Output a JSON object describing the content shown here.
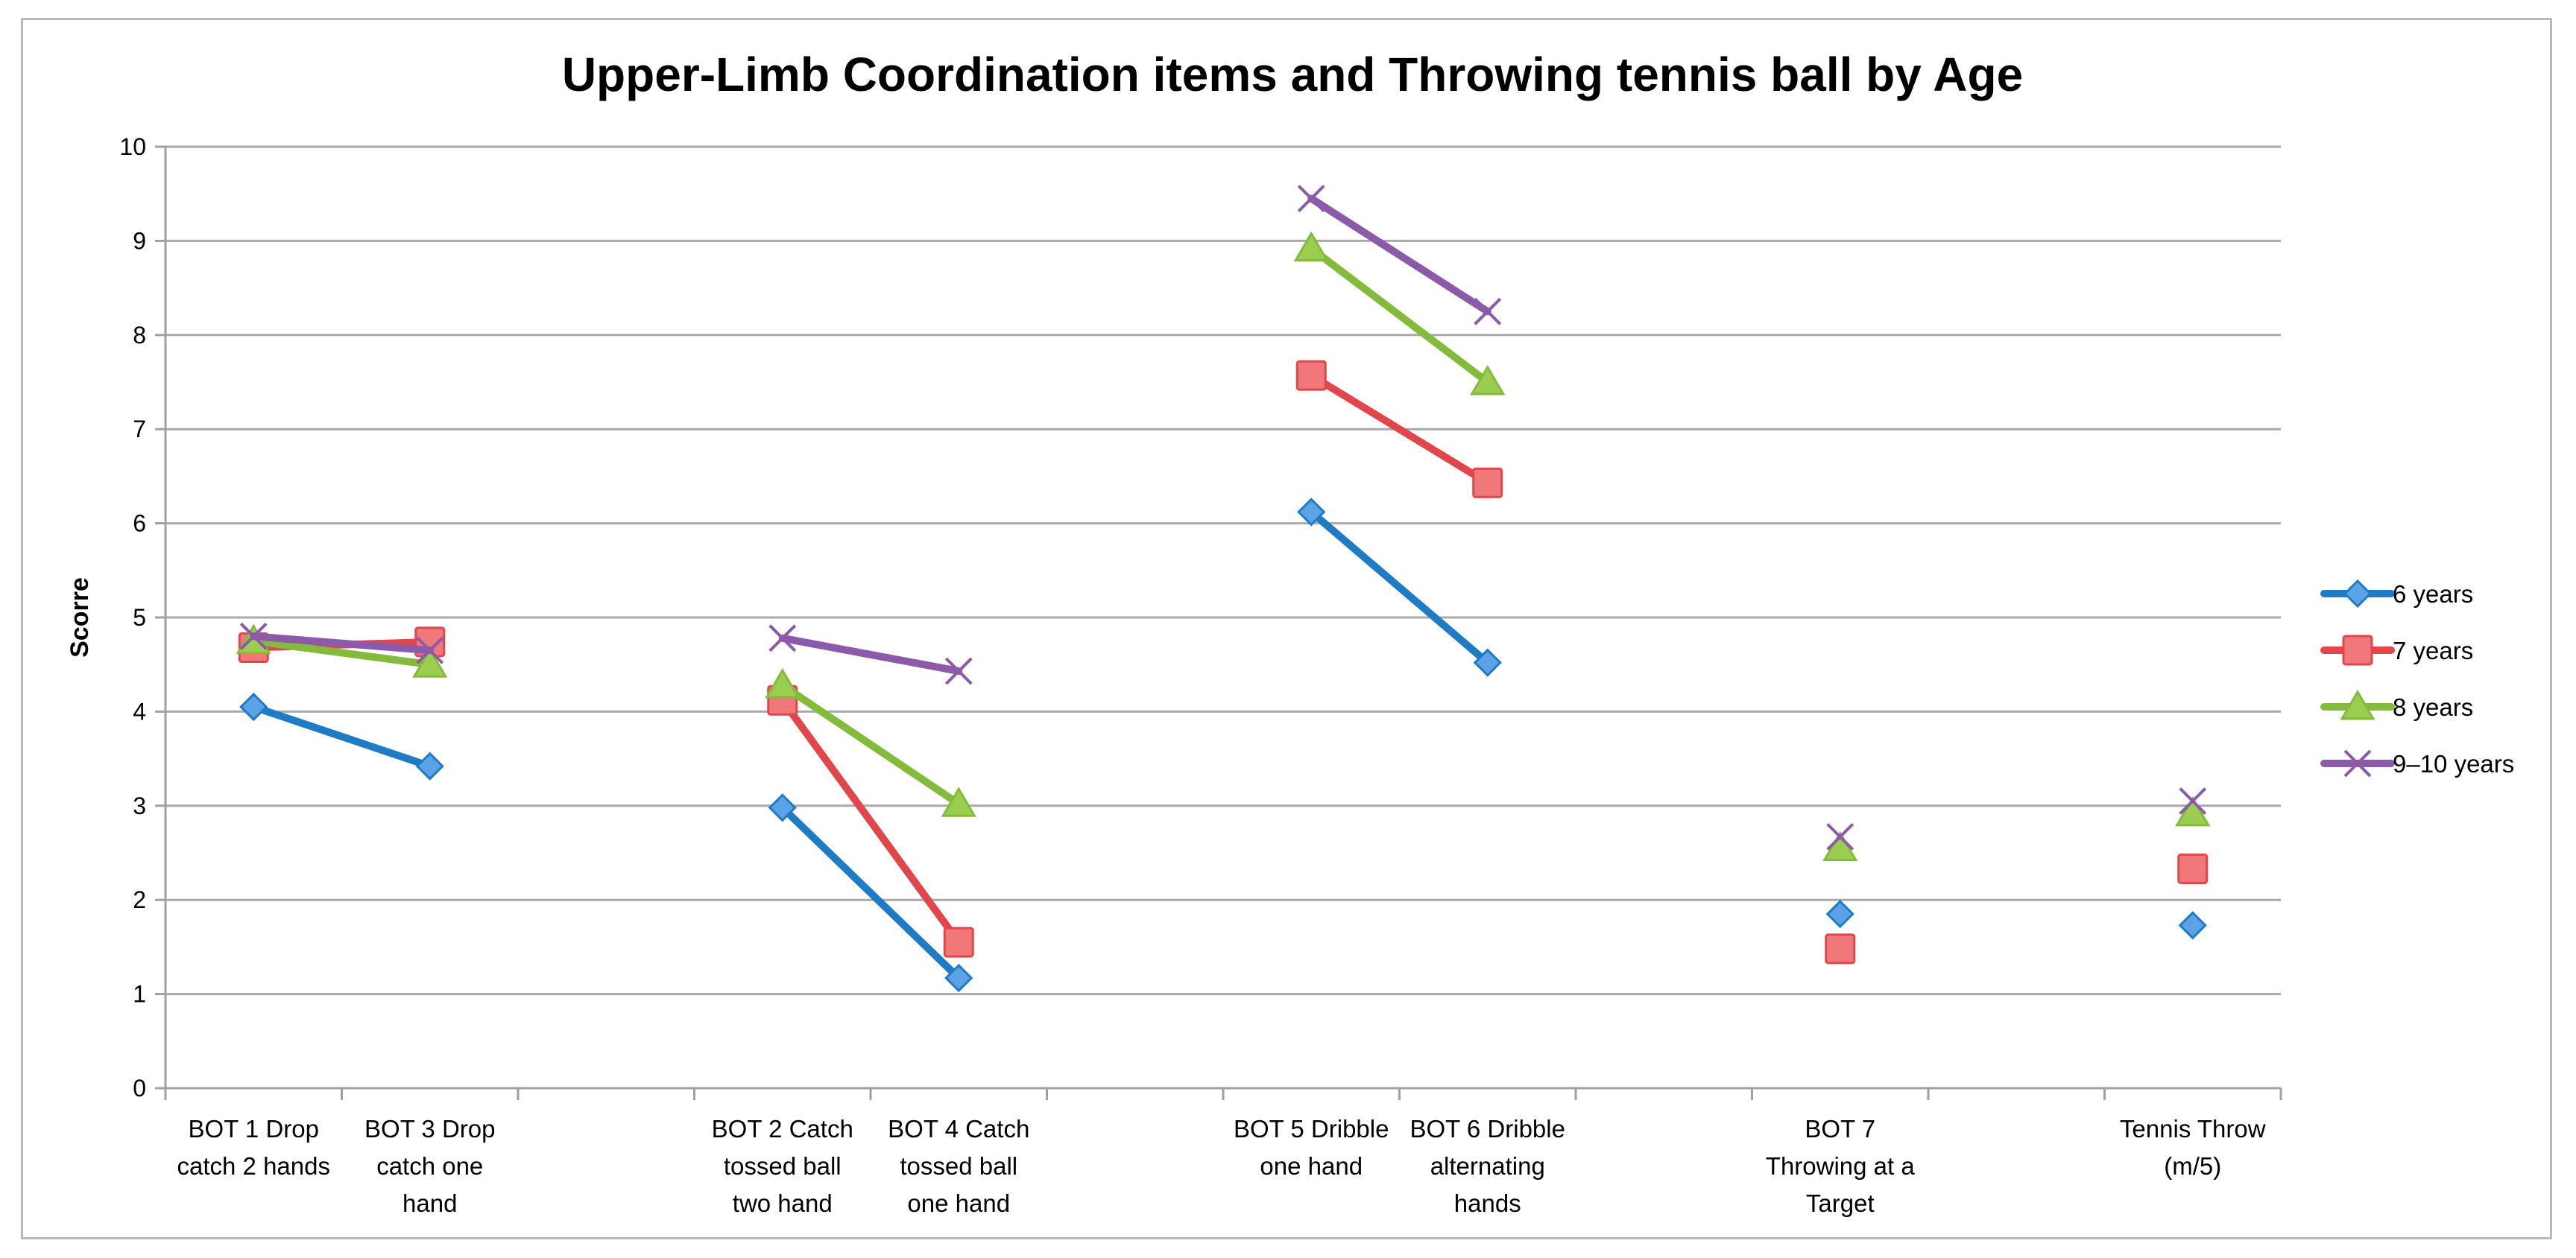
{
  "chart_data": {
    "type": "line",
    "title": "Upper-Limb Coordination items and Throwing tennis ball by Age",
    "xlabel": "",
    "ylabel": "Scorre",
    "ylim": [
      0,
      10
    ],
    "yticks": [
      "0",
      "1",
      "2",
      "3",
      "4",
      "5",
      "6",
      "7",
      "8",
      "9",
      "10"
    ],
    "grid": true,
    "legend_position": "right",
    "categories": [
      [
        "BOT 1 Drop",
        "catch 2 hands"
      ],
      [
        "BOT 3 Drop",
        "catch one",
        "hand"
      ],
      [],
      [
        "BOT 2 Catch",
        "tossed ball",
        "two hand"
      ],
      [
        "BOT 4 Catch",
        "tossed ball",
        "one hand"
      ],
      [],
      [
        "BOT 5 Dribble",
        "one hand"
      ],
      [
        "BOT 6 Dribble",
        "alternating",
        "hands"
      ],
      [],
      [
        "BOT 7",
        "Throwing at a",
        "Target"
      ],
      [],
      [
        "Tennis Throw",
        "(m/5)"
      ]
    ],
    "series": [
      {
        "name": "6 years",
        "color": "#1f7bc3",
        "fill": "#5ba3e6",
        "marker": "diamond",
        "values": [
          4.05,
          3.42,
          null,
          2.98,
          1.17,
          null,
          6.12,
          4.52,
          null,
          1.85,
          null,
          1.73
        ]
      },
      {
        "name": "7 years",
        "color": "#e0464a",
        "fill": "#f0787a",
        "marker": "square",
        "values": [
          4.68,
          4.74,
          null,
          4.12,
          1.55,
          null,
          7.57,
          6.43,
          null,
          1.48,
          null,
          2.33
        ]
      },
      {
        "name": "8 years",
        "color": "#84bb3c",
        "fill": "#9acd50",
        "marker": "triangle",
        "values": [
          4.75,
          4.5,
          null,
          4.28,
          3.02,
          null,
          8.92,
          7.5,
          null,
          2.55,
          null,
          2.92
        ]
      },
      {
        "name": "9–10 years",
        "color": "#8b5aa8",
        "fill": "#8b5aa8",
        "marker": "x",
        "values": [
          4.8,
          4.65,
          null,
          4.78,
          4.43,
          null,
          9.45,
          8.25,
          null,
          2.67,
          null,
          3.05
        ]
      }
    ]
  }
}
